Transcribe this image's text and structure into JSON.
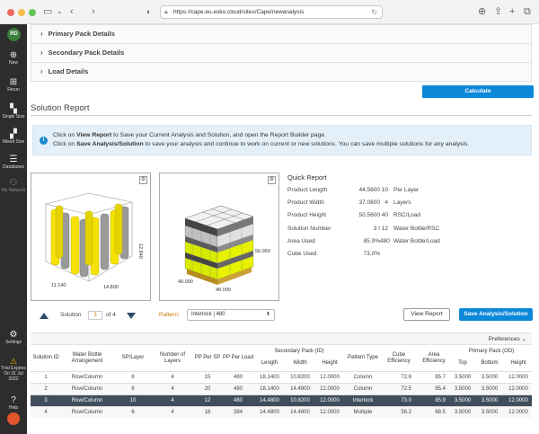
{
  "browser": {
    "url": "https://cape.eu.esko.cloud/sites/Cape/newanalysis"
  },
  "sidebar": {
    "avatar_initials": "RD",
    "items": [
      {
        "label": "New",
        "icon": "plus-circle-icon"
      },
      {
        "label": "Rerun",
        "icon": "rerun-icon"
      },
      {
        "label": "Single Size",
        "icon": "single-size-icon"
      },
      {
        "label": "Mixed Size",
        "icon": "mixed-size-icon"
      },
      {
        "label": "Databases",
        "icon": "database-icon"
      },
      {
        "label": "My Network",
        "icon": "network-icon"
      },
      {
        "label": "Settings",
        "icon": "gear-icon"
      }
    ],
    "trial": {
      "line1": "Trial Expires",
      "line2": "On 31 Jul",
      "line3": "2022"
    },
    "help_label": "Help"
  },
  "accordions": [
    "Primary Pack Details",
    "Secondary Pack Details",
    "Load Details"
  ],
  "calculate_label": "Calculate",
  "solution_report_title": "Solution Report",
  "info": {
    "line1_pre": "Click on ",
    "line1_bold": "View Report",
    "line1_post": " to Save your Current Analysis and Solution, and open the Report Builder page.",
    "line2_pre": "Click on ",
    "line2_bold": "Save Analysis/Solution",
    "line2_post": " to save your analysis and continue to work on current or new solutions. You can save multiple solutions for any analysis."
  },
  "figures": {
    "case_dims": {
      "height": "12.840",
      "width": "11.140",
      "length": "14.800"
    },
    "pallet_dims": {
      "height": "56.060",
      "width": "40.000",
      "length": "48.000"
    }
  },
  "quick_report": {
    "title": "Quick Report",
    "rows": [
      {
        "key": "Product Length",
        "value": "44.5600",
        "num": "10",
        "label": "Per Layer"
      },
      {
        "key": "Product Width",
        "value": "37.0800",
        "num": "4",
        "label": "Layers"
      },
      {
        "key": "Product Height",
        "value": "50.5600",
        "num": "40",
        "label": "RSC/Load"
      },
      {
        "key": "Solution Number",
        "value": "3 I",
        "num": "12",
        "label": "Water Bottle/RSC"
      },
      {
        "key": "Area Used",
        "value": "85.9%",
        "num": "480",
        "label": "Water Bottle/Load"
      },
      {
        "key": "Cube Used",
        "value": "73.0%",
        "num": "",
        "label": ""
      }
    ]
  },
  "solution_nav": {
    "label": "Solution",
    "current": "3",
    "of_label": "of 4"
  },
  "pattern": {
    "label": "Pattern:",
    "selected": "Interlock | 480"
  },
  "view_report_label": "View Report",
  "save_label": "Save Analysis/Solution",
  "preferences_label": "Preferences",
  "table": {
    "group_headers": {
      "secondary": "Secondary Pack (ID)",
      "primary": "Primary Pack (OD)"
    },
    "headers": {
      "solution_id": "Solution ID",
      "arrangement": "Water Bottle Arrangement",
      "sp_layer": "SP/Layer",
      "layers": "Number of Layers",
      "pp_sp": "PP Per SP",
      "pp_load": "PP Per Load",
      "length": "Length",
      "width": "Width",
      "height": "Height",
      "pattern_type": "Pattern Type",
      "cube_eff": "Cube Efficiency",
      "area_eff": "Area Efficiency",
      "top": "Top",
      "bottom": "Bottom",
      "p_height": "Height"
    },
    "rows": [
      [
        "1",
        "Row/Column",
        "8",
        "4",
        "15",
        "480",
        "18.1400",
        "10.8200",
        "12.0000",
        "Column",
        "72.8",
        "85.7",
        "3.5000",
        "3.5000",
        "12.0000"
      ],
      [
        "2",
        "Row/Column",
        "6",
        "4",
        "20",
        "480",
        "18.1400",
        "14.4800",
        "12.0000",
        "Column",
        "72.5",
        "85.4",
        "3.5000",
        "3.5000",
        "12.0000"
      ],
      [
        "3",
        "Row/Column",
        "10",
        "4",
        "12",
        "480",
        "14.4800",
        "10.8200",
        "12.0000",
        "Interlock",
        "73.0",
        "85.9",
        "3.5000",
        "3.5000",
        "12.0000"
      ],
      [
        "4",
        "Row/Column",
        "6",
        "4",
        "16",
        "384",
        "14.4800",
        "14.4800",
        "12.0000",
        "Multiple",
        "58.2",
        "68.5",
        "3.5000",
        "3.5000",
        "12.0000"
      ]
    ],
    "selected_index": 2
  }
}
